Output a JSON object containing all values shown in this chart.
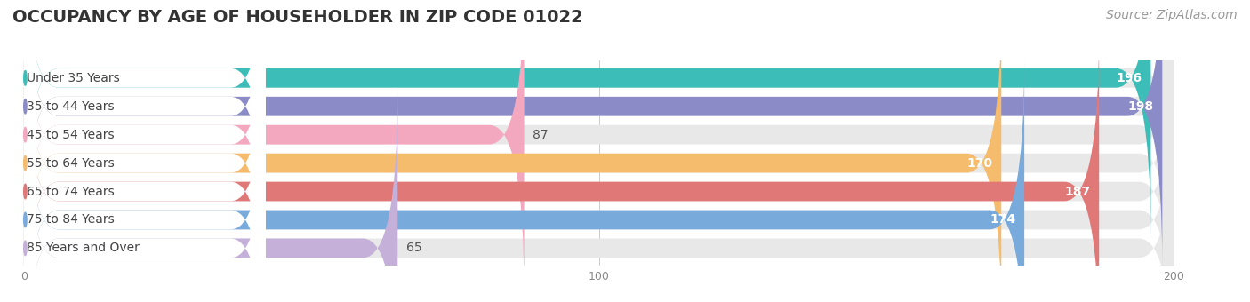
{
  "title": "OCCUPANCY BY AGE OF HOUSEHOLDER IN ZIP CODE 01022",
  "source": "Source: ZipAtlas.com",
  "categories": [
    "Under 35 Years",
    "35 to 44 Years",
    "45 to 54 Years",
    "55 to 64 Years",
    "65 to 74 Years",
    "75 to 84 Years",
    "85 Years and Over"
  ],
  "values": [
    196,
    198,
    87,
    170,
    187,
    174,
    65
  ],
  "bar_colors": [
    "#3dbdb8",
    "#8b8bc8",
    "#f4a8c0",
    "#f5bc6e",
    "#e07878",
    "#78aadc",
    "#c4b0d8"
  ],
  "bar_bg_colors": [
    "#ebebeb",
    "#ebebeb",
    "#ebebeb",
    "#ebebeb",
    "#ebebeb",
    "#ebebeb",
    "#ebebeb"
  ],
  "dot_colors": [
    "#3dbdb8",
    "#8b8bc8",
    "#f4a8c0",
    "#f5bc6e",
    "#e07878",
    "#78aadc",
    "#c4b0d8"
  ],
  "xlim": [
    0,
    200
  ],
  "xticks": [
    0,
    100,
    200
  ],
  "title_fontsize": 14,
  "source_fontsize": 10,
  "label_fontsize": 10,
  "value_fontsize": 10,
  "background_color": "#ffffff",
  "bar_bg_color": "#ebebeb"
}
